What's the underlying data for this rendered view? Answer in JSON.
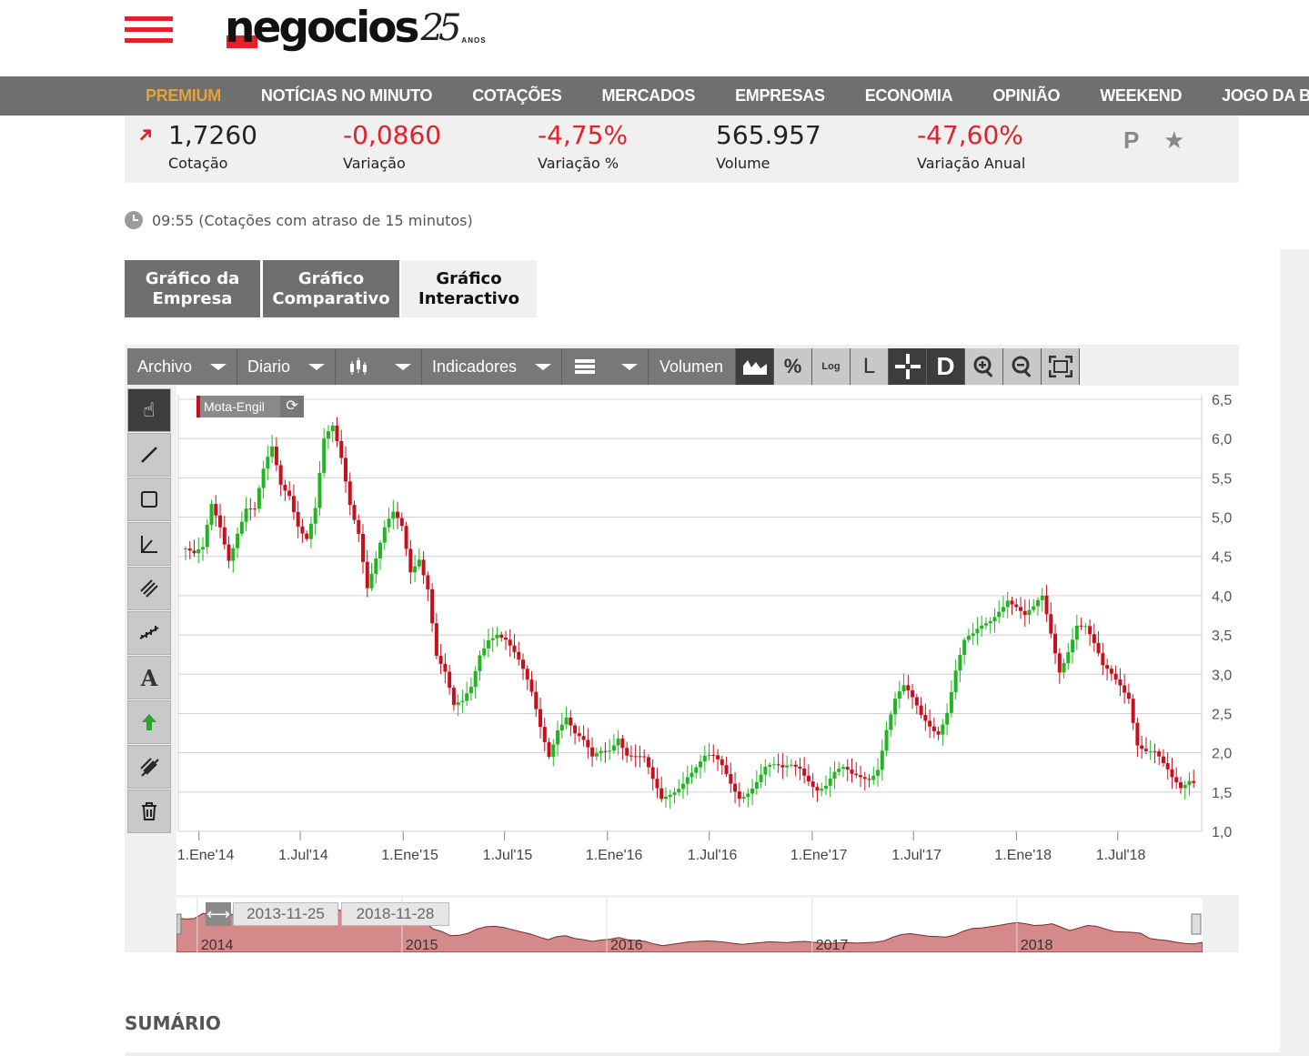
{
  "header": {
    "logo": "negocios",
    "logo_anniversary": "25",
    "logo_anos": "ANOS"
  },
  "nav": [
    {
      "label": "PREMIUM",
      "premium": true
    },
    {
      "label": "NOTÍCIAS NO MINUTO"
    },
    {
      "label": "COTAÇÕES"
    },
    {
      "label": "MERCADOS"
    },
    {
      "label": "EMPRESAS"
    },
    {
      "label": "ECONOMIA"
    },
    {
      "label": "OPINIÃO"
    },
    {
      "label": "WEEKEND"
    },
    {
      "label": "JOGO DA BOLSA"
    }
  ],
  "quote": {
    "price": "1,7260",
    "price_label": "Cotação",
    "change": "-0,0860",
    "change_label": "Variação",
    "change_pct": "-4,75%",
    "change_pct_label": "Variação %",
    "volume": "565.957",
    "volume_label": "Volume",
    "annual": "-47,60%",
    "annual_label": "Variação Anual",
    "badges": "P ★"
  },
  "time_note": "09:55 (Cotações com atraso de 15 minutos)",
  "tabs": [
    {
      "label": "Gráfico da Empresa"
    },
    {
      "label": "Gráfico Comparativo"
    },
    {
      "label": "Gráfico Interactivo",
      "active": true
    }
  ],
  "toolbar": {
    "archivo": "Archivo",
    "diario": "Diario",
    "indicadores": "Indicadores",
    "volumen": "Volumen",
    "pct": "%",
    "log": "Log",
    "l": "L",
    "d": "D"
  },
  "sidetools": [
    "pointer-icon",
    "line-icon",
    "rectangle-icon",
    "angle-icon",
    "channel-icon",
    "fibonacci-icon",
    "text-icon",
    "arrow-up-icon",
    "eraser-icon",
    "trash-icon"
  ],
  "colors": {
    "up": "#22b522",
    "down": "#c8101d",
    "accent": "#e2212b",
    "nav": "#6f6f6f",
    "premium": "#e3a23a"
  },
  "chart_data": {
    "type": "candlestick",
    "series_label": "Mota-Engil",
    "ylim": [
      1.0,
      6.5
    ],
    "yticks": [
      "6,5",
      "6,0",
      "5,5",
      "5,0",
      "4,5",
      "4,0",
      "3,5",
      "3,0",
      "2,5",
      "2,0",
      "1,5",
      "1,0"
    ],
    "xticks": [
      "1.Ene'14",
      "1.Jul'14",
      "1.Ene'15",
      "1.Jul'15",
      "1.Ene'16",
      "1.Jul'16",
      "1.Ene'17",
      "1.Jul'17",
      "1.Ene'18",
      "1.Jul'18"
    ],
    "x_start": "2013-11-25",
    "x_end": "2018-11-28",
    "navigator_from": "2013-11-25",
    "navigator_to": "2018-11-28",
    "navigator_years": [
      "2014",
      "2015",
      "2016",
      "2017",
      "2018"
    ],
    "closes": [
      4.6,
      4.45,
      4.5,
      5.1,
      4.9,
      4.55,
      4.9,
      5.15,
      5.05,
      5.5,
      5.8,
      5.4,
      5.35,
      5.0,
      4.8,
      5.1,
      5.9,
      6.05,
      5.7,
      5.2,
      4.9,
      4.2,
      4.5,
      4.8,
      4.95,
      4.8,
      4.3,
      4.55,
      4.2,
      3.3,
      3.0,
      2.5,
      2.55,
      2.8,
      3.3,
      3.55,
      3.6,
      3.45,
      3.2,
      2.95,
      2.7,
      2.35,
      2.05,
      2.4,
      2.5,
      2.2,
      2.05,
      1.85,
      2.0,
      2.1,
      2.3,
      2.05,
      1.95,
      1.85,
      1.55,
      1.35,
      1.5,
      1.65,
      1.8,
      1.85,
      1.9,
      1.85,
      1.75,
      1.6,
      1.5,
      1.6,
      1.7,
      1.8,
      1.75,
      1.7,
      1.8,
      1.85,
      1.75,
      1.62,
      1.6,
      1.68,
      1.7,
      1.65,
      1.7,
      1.75,
      1.9,
      2.35,
      2.65,
      2.75,
      2.6,
      2.45,
      2.4,
      2.35,
      2.6,
      3.05,
      3.35,
      3.4,
      3.55,
      3.7,
      3.9,
      4.05,
      3.9,
      3.7,
      3.75,
      3.9,
      3.5,
      3.1,
      3.4,
      3.7,
      3.6,
      3.3,
      3.0,
      2.95,
      2.9,
      2.8,
      2.2,
      2.05,
      1.95,
      1.75,
      1.6,
      1.55,
      1.73
    ]
  }
}
